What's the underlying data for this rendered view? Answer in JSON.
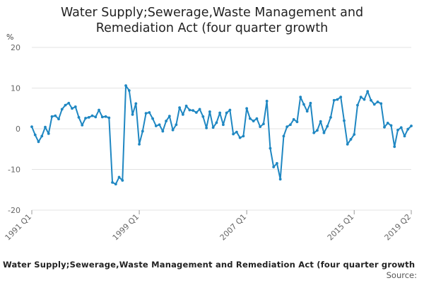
{
  "chart_data": {
    "type": "line",
    "title_lines": [
      "Water Supply;Sewerage,Waste Management and",
      "Remediation Act (four quarter growth"
    ],
    "ylabel": "%",
    "ylim": [
      -20,
      20
    ],
    "yticks": [
      20,
      10,
      0,
      -10,
      -20
    ],
    "x_tick_labels": [
      "1991 Q1",
      "1999 Q1",
      "2007 Q1",
      "2015 Q1",
      "2019 Q2"
    ],
    "x_tick_index": [
      0,
      32,
      64,
      96,
      113
    ],
    "grid": true,
    "legend": "none",
    "line_color": "#1f87c2",
    "series": [
      {
        "x": [
          "1991 Q1",
          "1991 Q2",
          "1991 Q3",
          "1991 Q4",
          "1992 Q1",
          "1992 Q2",
          "1992 Q3",
          "1992 Q4",
          "1993 Q1",
          "1993 Q2",
          "1993 Q3",
          "1993 Q4",
          "1994 Q1",
          "1994 Q2",
          "1994 Q3",
          "1994 Q4",
          "1995 Q1",
          "1995 Q2",
          "1995 Q3",
          "1995 Q4",
          "1996 Q1",
          "1996 Q2",
          "1996 Q3",
          "1996 Q4",
          "1997 Q1",
          "1997 Q2",
          "1997 Q3",
          "1997 Q4",
          "1998 Q1",
          "1998 Q2",
          "1998 Q3",
          "1998 Q4",
          "1999 Q1",
          "1999 Q2",
          "1999 Q3",
          "1999 Q4",
          "2000 Q1",
          "2000 Q2",
          "2000 Q3",
          "2000 Q4",
          "2001 Q1",
          "2001 Q2",
          "2001 Q3",
          "2001 Q4",
          "2002 Q1",
          "2002 Q2",
          "2002 Q3",
          "2002 Q4",
          "2003 Q1",
          "2003 Q2",
          "2003 Q3",
          "2003 Q4",
          "2004 Q1",
          "2004 Q2",
          "2004 Q3",
          "2004 Q4",
          "2005 Q1",
          "2005 Q2",
          "2005 Q3",
          "2005 Q4",
          "2006 Q1",
          "2006 Q2",
          "2006 Q3",
          "2006 Q4",
          "2007 Q1",
          "2007 Q2",
          "2007 Q3",
          "2007 Q4",
          "2008 Q1",
          "2008 Q2",
          "2008 Q3",
          "2008 Q4",
          "2009 Q1",
          "2009 Q2",
          "2009 Q3",
          "2009 Q4",
          "2010 Q1",
          "2010 Q2",
          "2010 Q3",
          "2010 Q4",
          "2011 Q1",
          "2011 Q2",
          "2011 Q3",
          "2011 Q4",
          "2012 Q1",
          "2012 Q2",
          "2012 Q3",
          "2012 Q4",
          "2013 Q1",
          "2013 Q2",
          "2013 Q3",
          "2013 Q4",
          "2014 Q1",
          "2014 Q2",
          "2014 Q3",
          "2014 Q4",
          "2015 Q1",
          "2015 Q2",
          "2015 Q3",
          "2015 Q4",
          "2016 Q1",
          "2016 Q2",
          "2016 Q3",
          "2016 Q4",
          "2017 Q1",
          "2017 Q2",
          "2017 Q3",
          "2017 Q4",
          "2018 Q1",
          "2018 Q2",
          "2018 Q3",
          "2018 Q4",
          "2019 Q1",
          "2019 Q2"
        ],
        "values": [
          0.5,
          -1.5,
          -3.2,
          -1.8,
          0.4,
          -1.2,
          3.0,
          3.2,
          2.4,
          4.8,
          5.8,
          6.3,
          5.0,
          5.4,
          2.8,
          0.9,
          2.6,
          2.8,
          3.2,
          2.9,
          4.6,
          2.9,
          3.0,
          2.7,
          -13.2,
          -13.6,
          -11.9,
          -12.7,
          10.6,
          9.4,
          3.5,
          6.2,
          -3.8,
          -0.6,
          3.8,
          4.0,
          2.5,
          0.7,
          1.0,
          -0.6,
          1.9,
          3.1,
          -0.3,
          1.0,
          5.2,
          3.5,
          5.6,
          4.6,
          4.5,
          4.0,
          4.8,
          3.0,
          0.2,
          4.2,
          0.3,
          1.5,
          3.9,
          1.0,
          3.9,
          4.6,
          -1.3,
          -0.8,
          -2.2,
          -1.8,
          5.0,
          2.5,
          1.9,
          2.5,
          0.5,
          1.2,
          6.8,
          -4.8,
          -9.4,
          -8.5,
          -12.4,
          -1.8,
          0.5,
          1.0,
          2.3,
          1.7,
          7.8,
          6.0,
          4.3,
          6.3,
          -1.0,
          -0.4,
          1.8,
          -1.0,
          0.6,
          2.8,
          7.0,
          7.2,
          7.8,
          2.0,
          -3.8,
          -2.6,
          -1.4,
          5.8,
          7.8,
          7.2,
          9.2,
          7.0,
          6.0,
          6.6,
          6.2,
          0.4,
          1.4,
          0.8,
          -4.4,
          -0.3,
          0.3,
          -1.8,
          -0.1,
          0.7
        ]
      }
    ]
  },
  "footer": {
    "caption": "Water Supply;Sewerage,Waste Management and Remediation Act (four quarter growth",
    "source_label": "Source:"
  }
}
